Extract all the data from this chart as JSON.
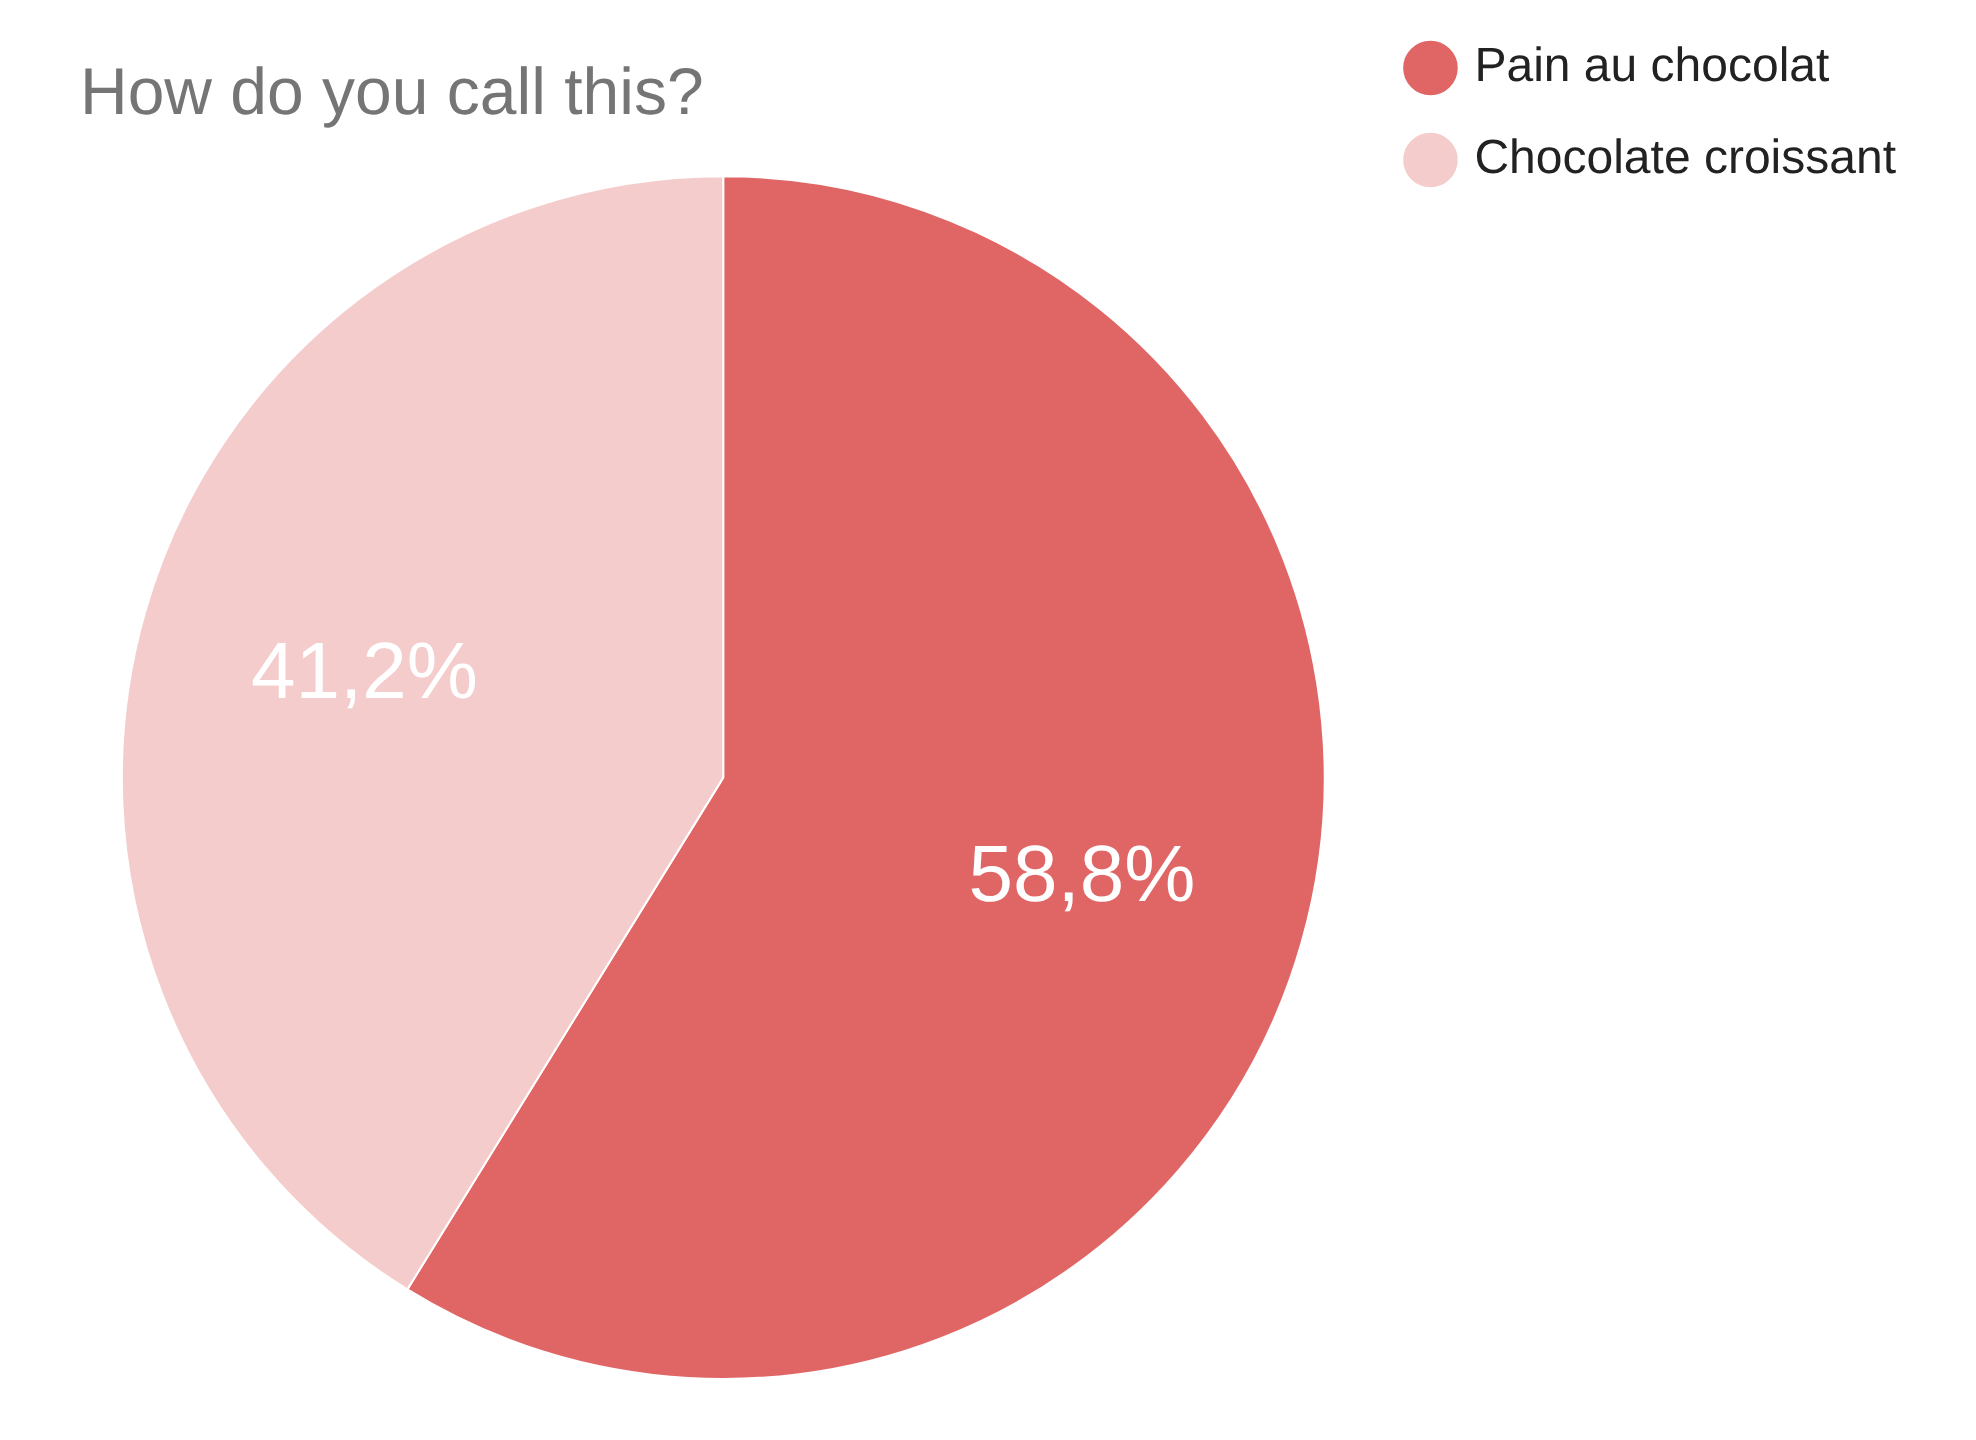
{
  "chart_data": {
    "type": "pie",
    "title": "How do you call this?",
    "categories": [
      "Pain au chocolat",
      "Chocolate croissant"
    ],
    "values": [
      58.8,
      41.2
    ],
    "colors": [
      "#e06666",
      "#f4cccc"
    ],
    "value_labels": [
      "58,8%",
      "41,2%"
    ],
    "legend": "top right"
  }
}
